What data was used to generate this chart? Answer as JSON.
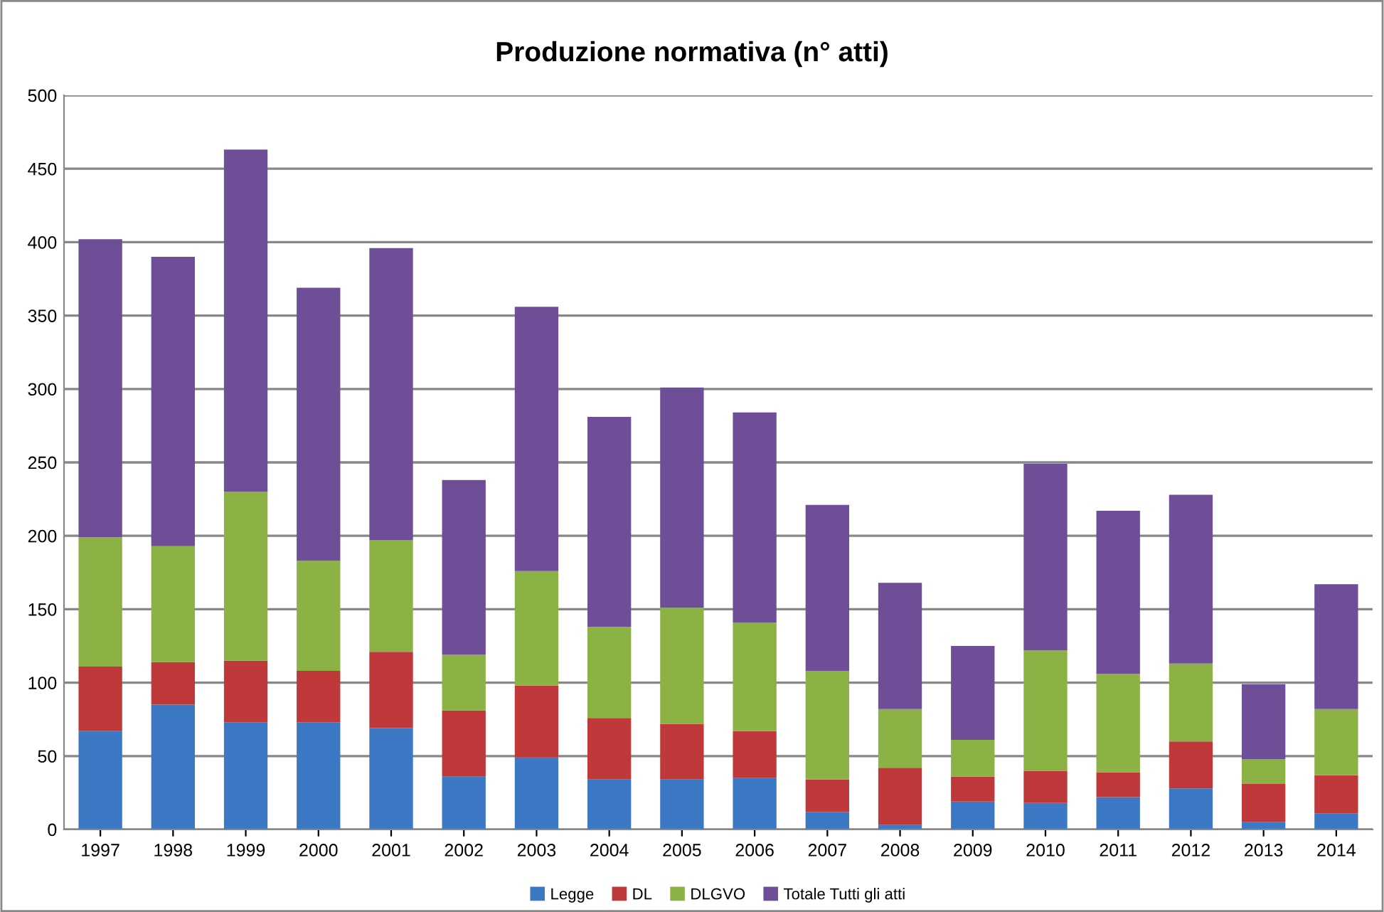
{
  "chart_data": {
    "type": "bar",
    "title": "Produzione normativa (n° atti)",
    "stacked": true,
    "categories": [
      "1997",
      "1998",
      "1999",
      "2000",
      "2001",
      "2002",
      "2003",
      "2004",
      "2005",
      "2006",
      "2007",
      "2008",
      "2009",
      "2010",
      "2011",
      "2012",
      "2013",
      "2014"
    ],
    "series": [
      {
        "name": "Legge",
        "color": "#3c78c4",
        "values": [
          67,
          85,
          73,
          73,
          69,
          36,
          49,
          34,
          34,
          35,
          12,
          3,
          19,
          18,
          22,
          28,
          5,
          11
        ]
      },
      {
        "name": "DL",
        "color": "#c0393a",
        "values": [
          44,
          29,
          42,
          35,
          52,
          45,
          49,
          42,
          38,
          32,
          22,
          39,
          17,
          22,
          17,
          32,
          26,
          26
        ]
      },
      {
        "name": "DLGVO",
        "color": "#8cb145",
        "values": [
          88,
          79,
          115,
          75,
          76,
          38,
          78,
          62,
          79,
          74,
          74,
          40,
          25,
          82,
          67,
          53,
          17,
          45
        ]
      },
      {
        "name": "Totale Tutti gli atti",
        "color": "#6e4e96",
        "values": [
          203,
          197,
          233,
          186,
          199,
          119,
          180,
          143,
          150,
          143,
          113,
          86,
          64,
          127,
          111,
          115,
          51,
          85
        ]
      }
    ],
    "ylim": [
      0,
      500
    ],
    "yticks": [
      0,
      50,
      100,
      150,
      200,
      250,
      300,
      350,
      400,
      450,
      500
    ],
    "grid": "y",
    "legend": "bottom"
  }
}
